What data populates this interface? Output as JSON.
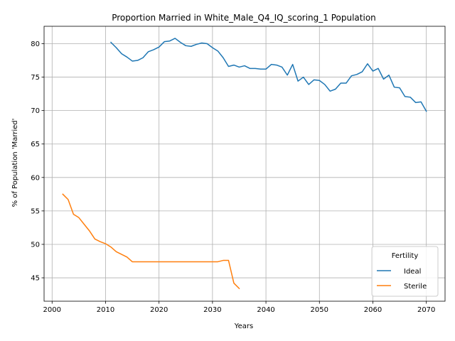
{
  "chart_data": {
    "type": "line",
    "title": "Proportion Married in White_Male_Q4_IQ_scoring_1 Population",
    "xlabel": "Years",
    "ylabel": "% of Population 'Married'",
    "xlim": [
      1998.5,
      2073.5
    ],
    "ylim": [
      41.5,
      82.6
    ],
    "xticks": [
      2000,
      2010,
      2020,
      2030,
      2040,
      2050,
      2060,
      2070
    ],
    "yticks": [
      45,
      50,
      55,
      60,
      65,
      70,
      75,
      80
    ],
    "grid": true,
    "legend": {
      "title": "Fertility",
      "placement": "lower-right"
    },
    "series": [
      {
        "name": "Ideal",
        "color": "#1f77b4",
        "x": [
          2011,
          2012,
          2013,
          2014,
          2015,
          2016,
          2017,
          2018,
          2019,
          2020,
          2021,
          2022,
          2023,
          2024,
          2025,
          2026,
          2027,
          2028,
          2029,
          2030,
          2031,
          2032,
          2033,
          2034,
          2035,
          2036,
          2037,
          2038,
          2039,
          2040,
          2041,
          2042,
          2043,
          2044,
          2045,
          2046,
          2047,
          2048,
          2049,
          2050,
          2051,
          2052,
          2053,
          2054,
          2055,
          2056,
          2057,
          2058,
          2059,
          2060,
          2061,
          2062,
          2063,
          2064,
          2065,
          2066,
          2067,
          2068,
          2069,
          2070
        ],
        "y": [
          80.2,
          79.4,
          78.5,
          78.0,
          77.4,
          77.5,
          77.9,
          78.8,
          79.1,
          79.5,
          80.3,
          80.4,
          80.8,
          80.2,
          79.7,
          79.6,
          79.9,
          80.1,
          80.0,
          79.4,
          78.9,
          77.9,
          76.6,
          76.8,
          76.5,
          76.7,
          76.3,
          76.3,
          76.2,
          76.2,
          76.9,
          76.8,
          76.5,
          75.3,
          76.9,
          74.4,
          75.0,
          73.9,
          74.6,
          74.5,
          73.9,
          72.9,
          73.2,
          74.1,
          74.1,
          75.2,
          75.4,
          75.8,
          77.0,
          75.9,
          76.3,
          74.7,
          75.3,
          73.5,
          73.4,
          72.1,
          72.0,
          71.2,
          71.3,
          69.9
        ]
      },
      {
        "name": "Sterile",
        "color": "#ff7f0e",
        "x": [
          2002,
          2003,
          2004,
          2005,
          2006,
          2007,
          2008,
          2009,
          2010,
          2011,
          2012,
          2013,
          2014,
          2015,
          2016,
          2017,
          2018,
          2019,
          2020,
          2021,
          2022,
          2023,
          2024,
          2025,
          2026,
          2027,
          2028,
          2029,
          2030,
          2031,
          2032,
          2033,
          2034,
          2035
        ],
        "y": [
          57.5,
          56.7,
          54.5,
          54.0,
          53.0,
          52.0,
          50.8,
          50.4,
          50.1,
          49.6,
          48.9,
          48.5,
          48.1,
          47.4,
          47.4,
          47.4,
          47.4,
          47.4,
          47.4,
          47.4,
          47.4,
          47.4,
          47.4,
          47.4,
          47.4,
          47.4,
          47.4,
          47.4,
          47.4,
          47.4,
          47.6,
          47.6,
          44.2,
          43.4
        ]
      }
    ]
  }
}
